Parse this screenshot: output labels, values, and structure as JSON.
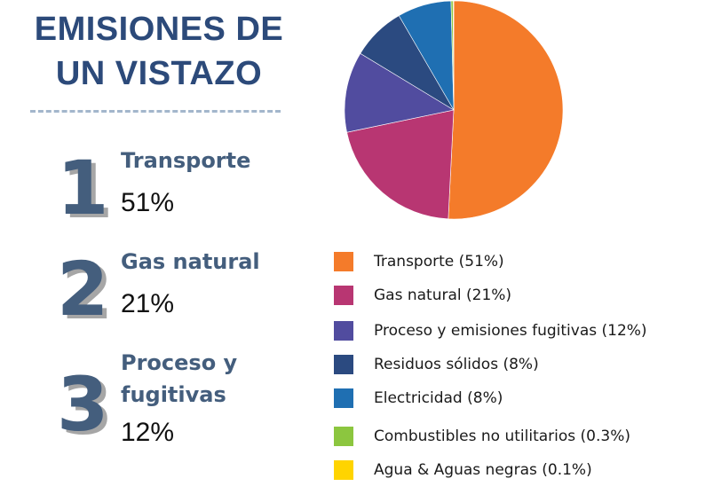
{
  "title": {
    "line1": "EMISIONES DE",
    "line2": "UN VISTAZO"
  },
  "ranking": [
    {
      "number": "1",
      "name": "Transporte",
      "percent": "51%"
    },
    {
      "number": "2",
      "name": "Gas natural",
      "percent": "21%"
    },
    {
      "number": "3",
      "name": "Proceso y fugitivas",
      "name_line1": "Proceso y",
      "name_line2": "fugitivas",
      "percent": "12%"
    }
  ],
  "chart_data": {
    "type": "pie",
    "slices": [
      {
        "label": "Transporte (51%)",
        "value": 51,
        "color": "#f47b2a"
      },
      {
        "label": "Gas natural (21%)",
        "value": 21,
        "color": "#b83672"
      },
      {
        "label": "Proceso y emisiones fugitivas (12%)",
        "value": 12,
        "color": "#514c9f"
      },
      {
        "label": "Residuos sólidos (8%)",
        "value": 8,
        "color": "#2b4a80"
      },
      {
        "label": "Electricidad (8%)",
        "value": 8,
        "color": "#1f6fb2"
      },
      {
        "label": "Combustibles no utilitarios (0.3%)",
        "value": 0.3,
        "color": "#8cc63f"
      },
      {
        "label": "Agua & Aguas negras (0.1%)",
        "value": 0.1,
        "color": "#ffd400"
      }
    ],
    "legend_position": "bottom-right"
  },
  "colors": {
    "title": "#2c4a7a",
    "rank_text": "#445e7d",
    "rank_shadow": "#a6a6a6",
    "divider": "#a3b6cc"
  }
}
